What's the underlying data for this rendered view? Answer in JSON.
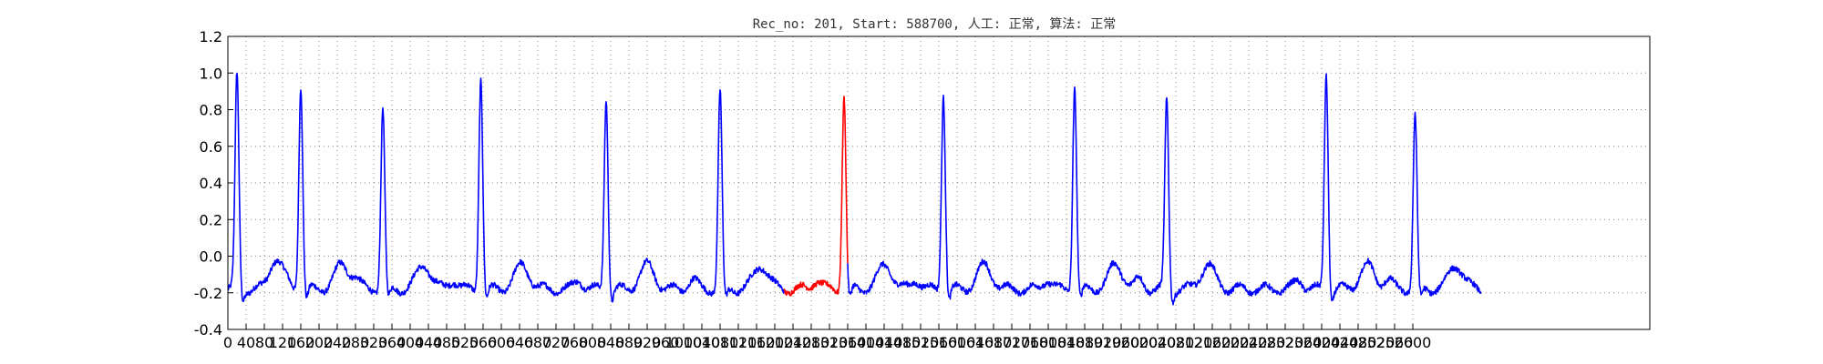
{
  "chart_data": {
    "type": "line",
    "title": "Rec_no: 201, Start: 588700, 人工: 正常, 算法: 正常",
    "xlabel": "",
    "ylabel": "",
    "xlim": [
      0,
      3120
    ],
    "ylim": [
      -0.4,
      1.2
    ],
    "grid": true,
    "y_ticks": [
      "-0.4",
      "-0.2",
      "0.0",
      "0.2",
      "0.4",
      "0.6",
      "0.8",
      "1.0",
      "1.2"
    ],
    "x_ticks": [
      "0",
      "40",
      "80",
      "120",
      "160",
      "200",
      "240",
      "280",
      "320",
      "360",
      "400",
      "440",
      "480",
      "520",
      "560",
      "600",
      "640",
      "680",
      "720",
      "760",
      "800",
      "840",
      "880",
      "920",
      "960",
      "1000",
      "1040",
      "1080",
      "1120",
      "1160",
      "1200",
      "1240",
      "1280",
      "1320",
      "1360",
      "1400",
      "1440",
      "1480",
      "1520",
      "1560",
      "1600",
      "1640",
      "1680",
      "1720",
      "1760",
      "1800",
      "1840",
      "1880",
      "1920",
      "1960",
      "2000",
      "2040",
      "2080",
      "2120",
      "2160",
      "2200",
      "2240",
      "2280",
      "2320",
      "2360",
      "2400",
      "2440",
      "2480",
      "2520",
      "2560",
      "2600"
    ],
    "signal_length": 2750,
    "series": [
      {
        "color": "#0000ff",
        "segments": [
          [
            0,
            1220
          ],
          [
            1360,
            2750
          ]
        ]
      },
      {
        "color": "#ff0000",
        "segments": [
          [
            1220,
            1360
          ]
        ]
      }
    ],
    "beats": [
      {
        "x": 20,
        "r": 1.02
      },
      {
        "x": 160,
        "r": 0.97
      },
      {
        "x": 340,
        "r": 0.84
      },
      {
        "x": 555,
        "r": 1.01
      },
      {
        "x": 830,
        "r": 0.9
      },
      {
        "x": 1080,
        "r": 0.93
      },
      {
        "x": 1352,
        "r": 0.91
      },
      {
        "x": 1570,
        "r": 0.92
      },
      {
        "x": 1858,
        "r": 0.96
      },
      {
        "x": 2060,
        "r": 0.88
      },
      {
        "x": 2410,
        "r": 1.03
      },
      {
        "x": 2605,
        "r": 0.8
      }
    ]
  }
}
